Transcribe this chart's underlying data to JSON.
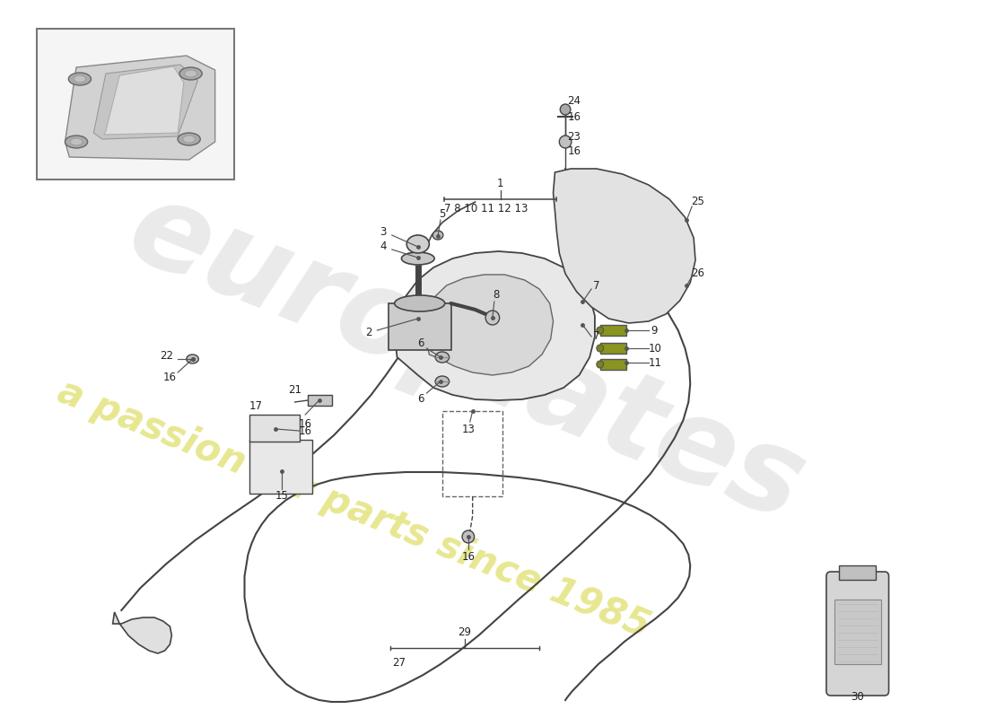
{
  "background_color": "#ffffff",
  "watermark1": "europlates",
  "watermark2": "a passion for parts since 1985",
  "line_color": "#444444",
  "part_fill": "#d8d8d8",
  "text_color": "#222222"
}
